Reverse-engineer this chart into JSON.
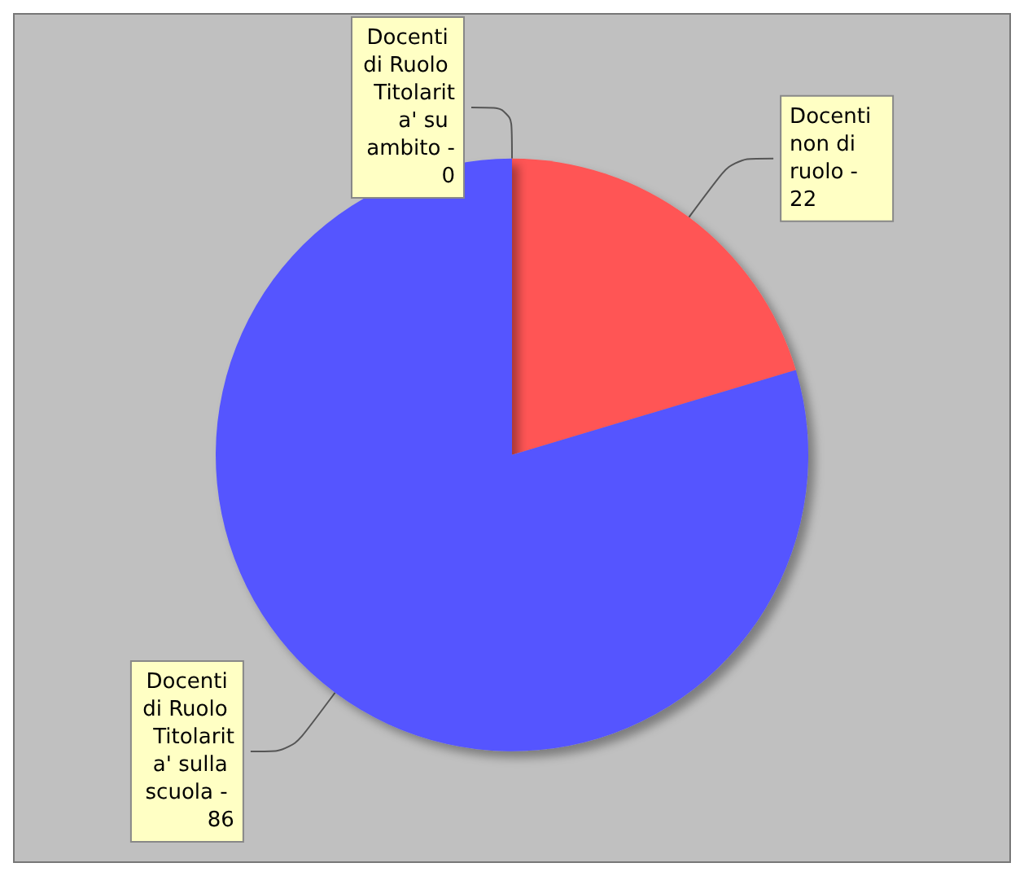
{
  "chart_data": {
    "type": "pie",
    "categories": [
      "Docenti non di ruolo -",
      "Docenti di Ruolo Titolarita' sulla scuola -",
      "Docenti di Ruolo Titolarita' su ambito -"
    ],
    "values": [
      22,
      86,
      0
    ],
    "value_labels": [
      "22",
      "86",
      "0"
    ],
    "colors": [
      "#ff5555",
      "#5555ff",
      "#55ff55"
    ],
    "legend": false
  }
}
